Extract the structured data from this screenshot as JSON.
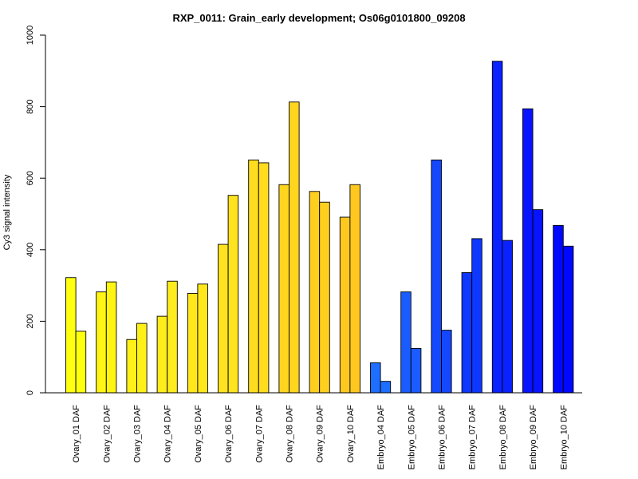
{
  "chart_data": {
    "type": "bar",
    "title": "RXP_0011: Grain_early development; Os06g0101800_09208",
    "xlabel": "",
    "ylabel": "Cy3 signal intensity",
    "ylim": [
      0,
      1000
    ],
    "yticks": [
      0,
      200,
      400,
      600,
      800,
      1000
    ],
    "grid": false,
    "legend": "none",
    "categories": [
      "Ovary_01 DAF",
      "Ovary_02 DAF",
      "Ovary_03 DAF",
      "Ovary_04 DAF",
      "Ovary_05 DAF",
      "Ovary_06 DAF",
      "Ovary_07 DAF",
      "Ovary_08 DAF",
      "Ovary_09 DAF",
      "Ovary_10 DAF",
      "Embryo_04 DAF",
      "Embryo_05 DAF",
      "Embryo_06 DAF",
      "Embryo_07 DAF",
      "Embryo_08 DAF",
      "Embryo_09 DAF",
      "Embryo_10 DAF"
    ],
    "groups": [
      {
        "values": [
          322,
          172
        ],
        "color": "#FFFF10"
      },
      {
        "values": [
          282,
          310
        ],
        "color": "#FFF514"
      },
      {
        "values": [
          149,
          194
        ],
        "color": "#FFF018"
      },
      {
        "values": [
          214,
          312
        ],
        "color": "#FFEC1C"
      },
      {
        "values": [
          278,
          304
        ],
        "color": "#FFE71C"
      },
      {
        "values": [
          415,
          552
        ],
        "color": "#FFE31E"
      },
      {
        "values": [
          651,
          643
        ],
        "color": "#FFDD1E"
      },
      {
        "values": [
          582,
          813
        ],
        "color": "#FFD51E"
      },
      {
        "values": [
          563,
          533
        ],
        "color": "#FFCF20"
      },
      {
        "values": [
          491,
          582
        ],
        "color": "#FFC820"
      },
      {
        "values": [
          84,
          32
        ],
        "color": "#1E6EFF"
      },
      {
        "values": [
          282,
          124
        ],
        "color": "#1A5CFF"
      },
      {
        "values": [
          651,
          175
        ],
        "color": "#1448FF"
      },
      {
        "values": [
          336,
          431
        ],
        "color": "#0E38FF"
      },
      {
        "values": [
          927,
          426
        ],
        "color": "#0A22FF"
      },
      {
        "values": [
          794,
          512
        ],
        "color": "#0814FF"
      },
      {
        "values": [
          468,
          410
        ],
        "color": "#0008FF"
      }
    ]
  }
}
